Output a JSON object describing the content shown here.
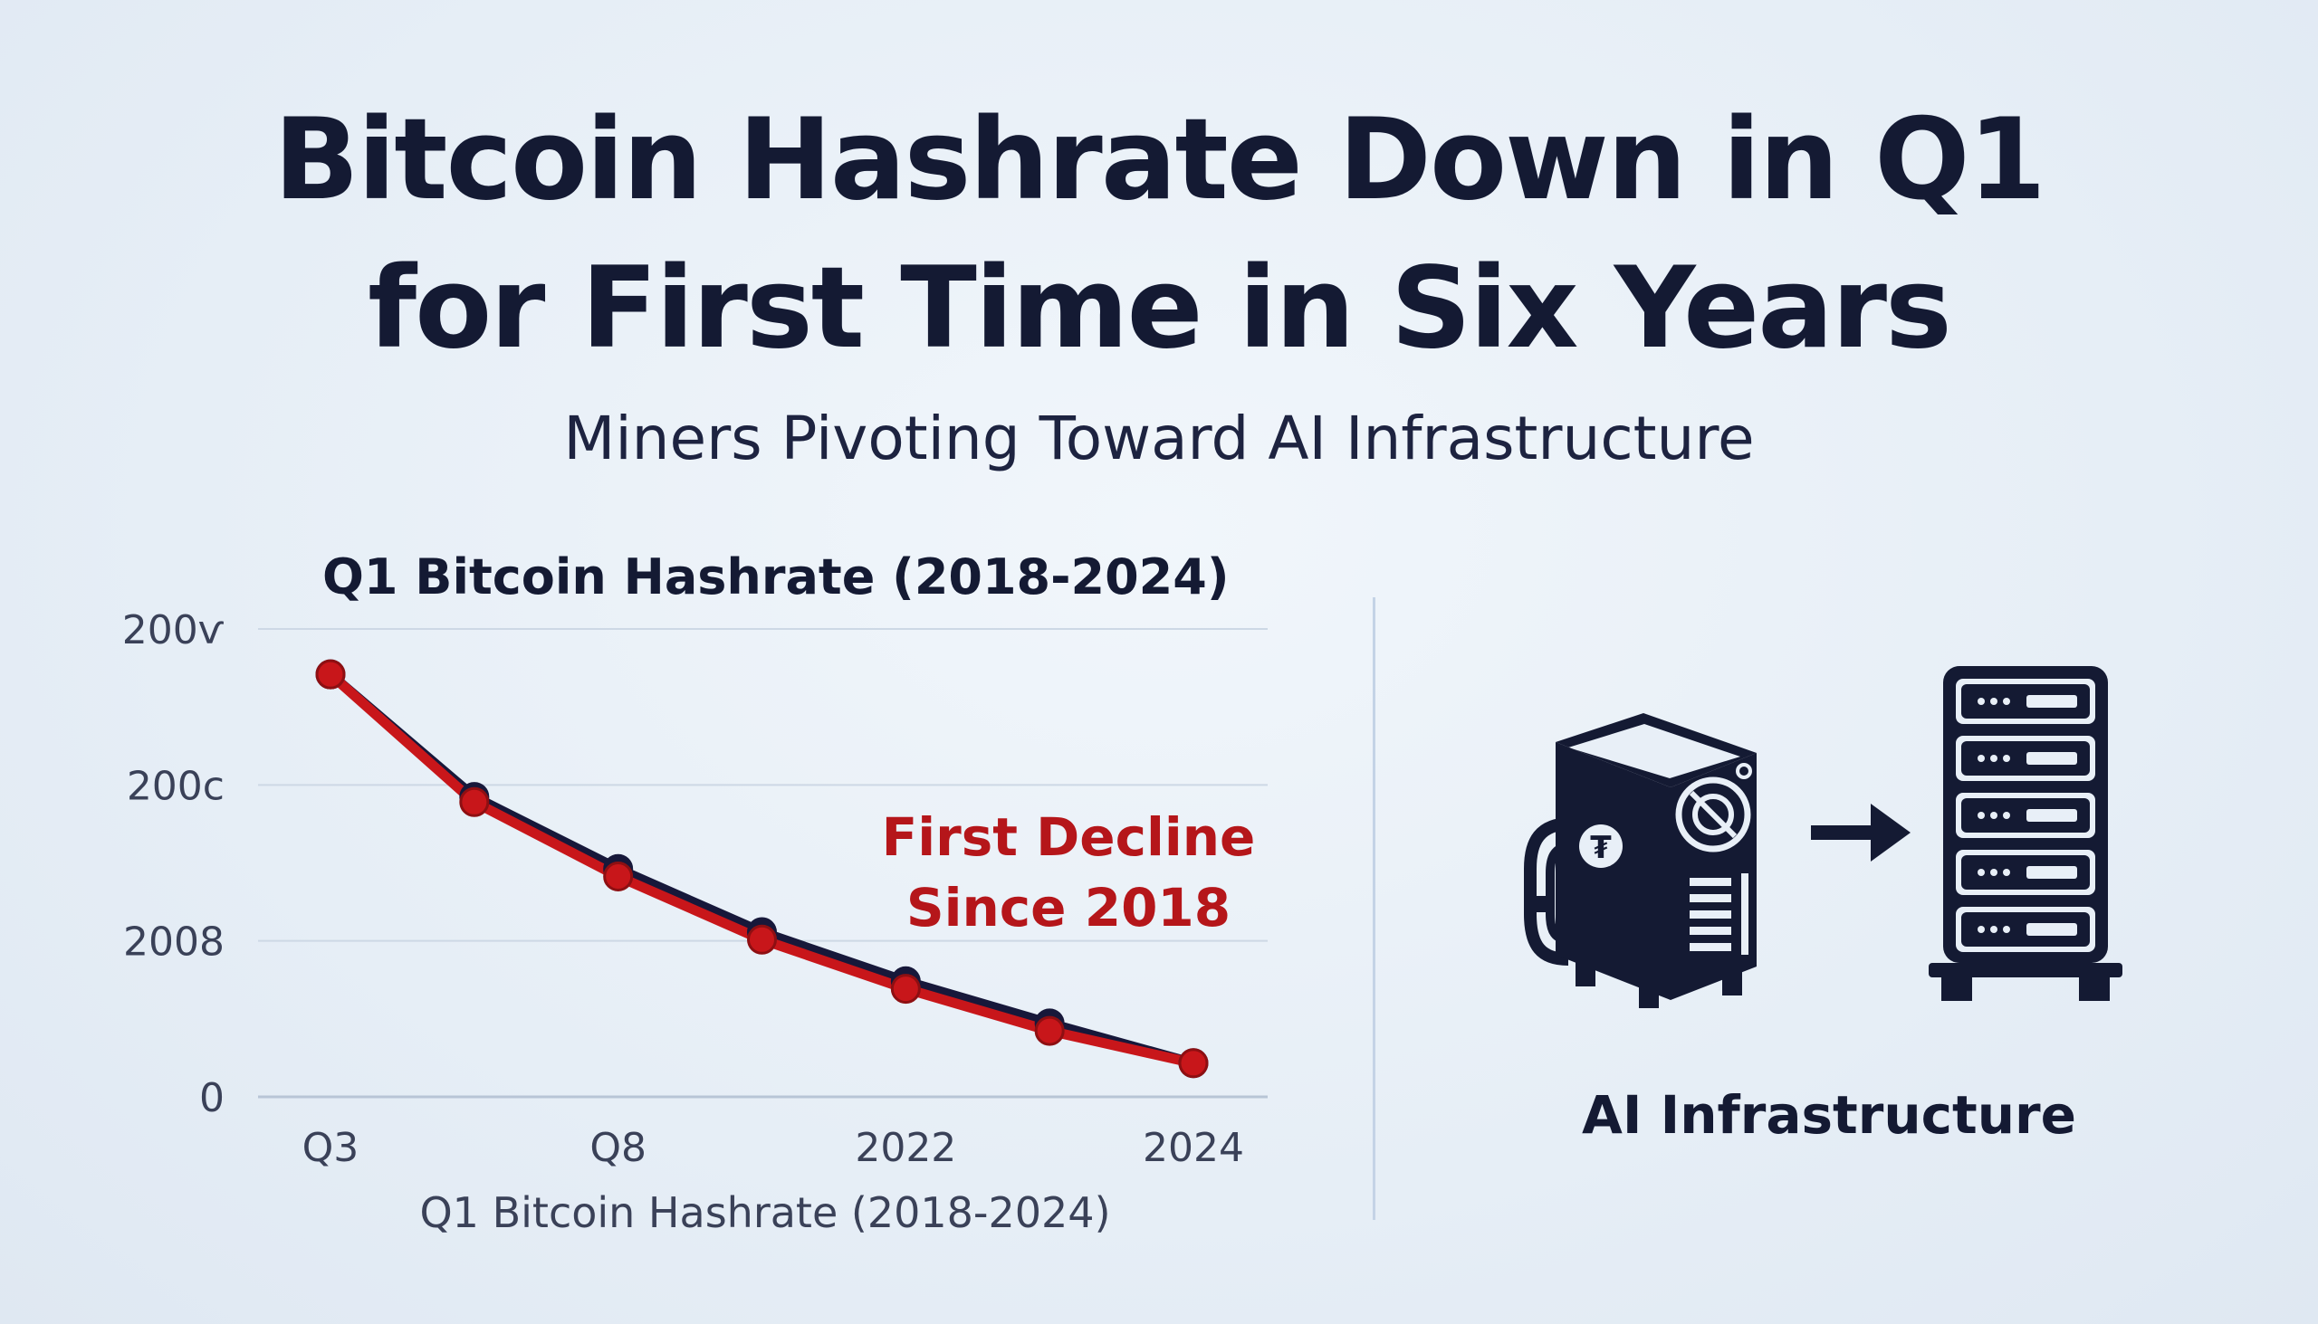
{
  "header": {
    "title_lines": [
      "Bitcoin Hashrate Down in Q1",
      "for First Time in Six Years"
    ],
    "subtitle": "Miners Pivoting Toward AI Infrastructure"
  },
  "chart_data": {
    "type": "line",
    "title": "Q1 Bitcoin Hashrate (2018-2024)",
    "xlabel": "Q1 Bitcoin Hashrate (2018-2024)",
    "ylabel": "",
    "x_tick_labels": [
      "Q3",
      "Q8",
      "2022",
      "2024"
    ],
    "y_tick_labels": [
      "0",
      "2008",
      "200с",
      "200ѵ"
    ],
    "x": [
      0,
      1,
      2,
      3,
      4,
      5,
      6
    ],
    "series": [
      {
        "color": "#17183a",
        "values": [
          90.3,
          64.1,
          48.7,
          35.2,
          24.7,
          15.7,
          7.2
        ]
      },
      {
        "color": "#c8161a",
        "values": [
          90.3,
          63.0,
          47.1,
          33.6,
          23.1,
          14.1,
          7.2
        ]
      }
    ],
    "ylim": [
      0,
      100
    ],
    "grid": true,
    "annotation": {
      "lines": [
        "First Decline",
        "Since 2018"
      ],
      "color": "#b5161a"
    }
  },
  "right_panel": {
    "label": "AI Infrastructure",
    "icons": [
      "mining-rig-icon",
      "arrow-right-icon",
      "server-rack-icon"
    ]
  }
}
